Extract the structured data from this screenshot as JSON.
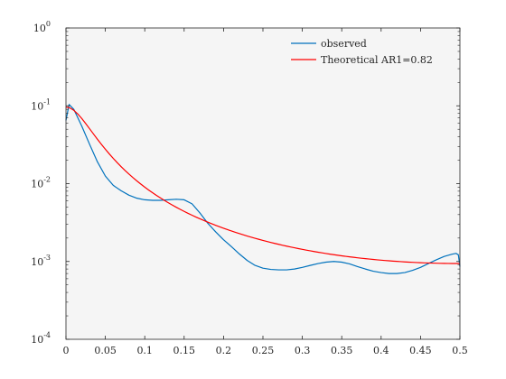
{
  "chart_data": {
    "type": "line",
    "title": "",
    "xlabel": "",
    "ylabel": "",
    "xlim": [
      0,
      0.5
    ],
    "ylim": [
      0.0001,
      1
    ],
    "yscale": "log",
    "grid": false,
    "legend_position": "top-right",
    "x_ticks": [
      "0",
      "0.05",
      "0.1",
      "0.15",
      "0.2",
      "0.25",
      "0.3",
      "0.35",
      "0.4",
      "0.45",
      "0.5"
    ],
    "y_ticks": [
      {
        "base": "10",
        "exp": "-4",
        "value": 0.0001
      },
      {
        "base": "10",
        "exp": "-3",
        "value": 0.001
      },
      {
        "base": "10",
        "exp": "-2",
        "value": 0.01
      },
      {
        "base": "10",
        "exp": "-1",
        "value": 0.1
      },
      {
        "base": "10",
        "exp": "0",
        "value": 1
      }
    ],
    "series": [
      {
        "name": "observed",
        "color": "#0072bd",
        "points": [
          [
            0.0,
            0.065
          ],
          [
            0.004,
            0.104
          ],
          [
            0.01,
            0.09
          ],
          [
            0.02,
            0.055
          ],
          [
            0.03,
            0.032
          ],
          [
            0.04,
            0.019
          ],
          [
            0.05,
            0.0125
          ],
          [
            0.06,
            0.0095
          ],
          [
            0.07,
            0.0081
          ],
          [
            0.08,
            0.0071
          ],
          [
            0.09,
            0.0065
          ],
          [
            0.1,
            0.0062
          ],
          [
            0.11,
            0.0061
          ],
          [
            0.12,
            0.0061
          ],
          [
            0.13,
            0.0062
          ],
          [
            0.14,
            0.0063
          ],
          [
            0.15,
            0.0062
          ],
          [
            0.16,
            0.0055
          ],
          [
            0.17,
            0.0042
          ],
          [
            0.18,
            0.0031
          ],
          [
            0.19,
            0.0024
          ],
          [
            0.2,
            0.0019
          ],
          [
            0.21,
            0.00155
          ],
          [
            0.22,
            0.00125
          ],
          [
            0.23,
            0.00103
          ],
          [
            0.24,
            0.00089
          ],
          [
            0.25,
            0.00082
          ],
          [
            0.26,
            0.00079
          ],
          [
            0.27,
            0.00078
          ],
          [
            0.28,
            0.00078
          ],
          [
            0.29,
            0.0008
          ],
          [
            0.3,
            0.00084
          ],
          [
            0.31,
            0.00089
          ],
          [
            0.32,
            0.00094
          ],
          [
            0.33,
            0.00098
          ],
          [
            0.34,
            0.001
          ],
          [
            0.35,
            0.00098
          ],
          [
            0.36,
            0.00093
          ],
          [
            0.37,
            0.00086
          ],
          [
            0.38,
            0.0008
          ],
          [
            0.39,
            0.00075
          ],
          [
            0.4,
            0.00072
          ],
          [
            0.41,
            0.0007
          ],
          [
            0.42,
            0.0007
          ],
          [
            0.43,
            0.00072
          ],
          [
            0.44,
            0.00077
          ],
          [
            0.45,
            0.00084
          ],
          [
            0.46,
            0.00094
          ],
          [
            0.47,
            0.00105
          ],
          [
            0.48,
            0.00116
          ],
          [
            0.49,
            0.00124
          ],
          [
            0.495,
            0.00127
          ],
          [
            0.498,
            0.00122
          ],
          [
            0.5,
            0.00086
          ]
        ]
      },
      {
        "name": "Theoretical AR1=0.82",
        "color": "#ff0000",
        "ar1": 0.82,
        "x_step": 0.005,
        "samples": 101
      }
    ]
  }
}
